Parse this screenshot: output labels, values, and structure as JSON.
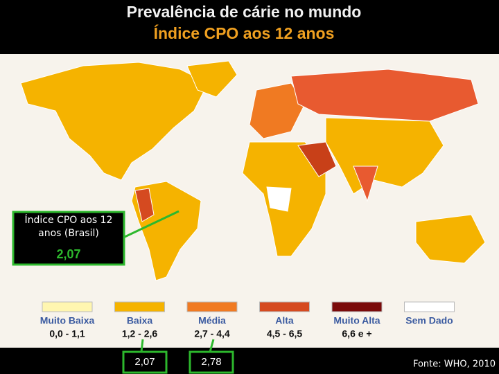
{
  "header": {
    "title": "Prevalência de cárie no mundo",
    "subtitle": "Índice CPO aos 12 anos"
  },
  "callout": {
    "label": "Índice CPO aos 12 anos (Brasil)",
    "value": "2,07"
  },
  "legend": [
    {
      "name": "Muito Baixa",
      "range": "0,0 - 1,1",
      "color": "#fff6b0"
    },
    {
      "name": "Baixa",
      "range": "1,2 - 2,6",
      "color": "#f5b300"
    },
    {
      "name": "Média",
      "range": "2,7 - 4,4",
      "color": "#f07a22"
    },
    {
      "name": "Alta",
      "range": "4,5 - 6,5",
      "color": "#d54a20"
    },
    {
      "name": "Muito Alta",
      "range": "6,6 e +",
      "color": "#7a0a0a"
    },
    {
      "name": "Sem Dado",
      "range": null,
      "color": "#ffffff"
    }
  ],
  "markers": [
    "2,07",
    "2,78"
  ],
  "source": "Fonte: WHO, 2010"
}
